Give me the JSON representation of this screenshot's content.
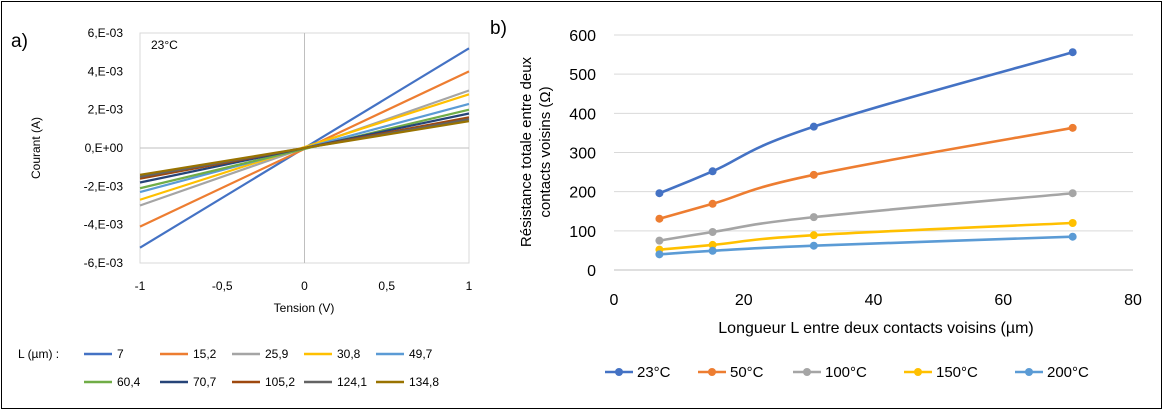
{
  "panel_labels": {
    "a": "a)",
    "b": "b)"
  },
  "chart_data": [
    {
      "type": "line",
      "annotation": "23°C",
      "xlabel": "Tension (V)",
      "ylabel": "Courant (A)",
      "xlim": [
        -1,
        1
      ],
      "ylim": [
        -0.006,
        0.006
      ],
      "xticks": [
        -1,
        -0.5,
        0,
        0.5,
        1
      ],
      "xtick_labels": [
        "-1",
        "-0,5",
        "0",
        "0,5",
        "1"
      ],
      "yticks": [
        -0.006,
        -0.004,
        -0.002,
        0,
        0.002,
        0.004,
        0.006
      ],
      "ytick_labels": [
        "-6,E-03",
        "-4,E-03",
        "-2,E-03",
        "0,E+00",
        "2,E-03",
        "4,E-03",
        "6,E-03"
      ],
      "legend_title": "L (µm) :",
      "legend_placement": "bottom",
      "series": [
        {
          "name": "7",
          "color": "#4472C4",
          "x": [
            -1,
            1
          ],
          "y": [
            -0.0052,
            0.0052
          ]
        },
        {
          "name": "15,2",
          "color": "#ED7D31",
          "x": [
            -1,
            1
          ],
          "y": [
            -0.0041,
            0.004
          ]
        },
        {
          "name": "25,9",
          "color": "#A5A5A5",
          "x": [
            -1,
            1
          ],
          "y": [
            -0.003,
            0.003
          ]
        },
        {
          "name": "30,8",
          "color": "#FFC000",
          "x": [
            -1,
            1
          ],
          "y": [
            -0.0027,
            0.0028
          ]
        },
        {
          "name": "49,7",
          "color": "#5B9BD5",
          "x": [
            -1,
            1
          ],
          "y": [
            -0.0023,
            0.0023
          ]
        },
        {
          "name": "60,4",
          "color": "#70AD47",
          "x": [
            -1,
            1
          ],
          "y": [
            -0.0021,
            0.002
          ]
        },
        {
          "name": "70,7",
          "color": "#264478",
          "x": [
            -1,
            1
          ],
          "y": [
            -0.0018,
            0.0018
          ]
        },
        {
          "name": "105,2",
          "color": "#9E480E",
          "x": [
            -1,
            1
          ],
          "y": [
            -0.0016,
            0.0016
          ]
        },
        {
          "name": "124,1",
          "color": "#636363",
          "x": [
            -1,
            1
          ],
          "y": [
            -0.0015,
            0.0015
          ]
        },
        {
          "name": "134,8",
          "color": "#997300",
          "x": [
            -1,
            1
          ],
          "y": [
            -0.0014,
            0.0014
          ]
        }
      ]
    },
    {
      "type": "line",
      "xlabel": "Longueur L entre deux contacts voisins (µm)",
      "ylabel_lines": [
        "Résistance totale entre deux",
        "contacts voisins (Ω)"
      ],
      "xlim": [
        0,
        80
      ],
      "ylim": [
        0,
        600
      ],
      "xticks": [
        0,
        20,
        40,
        60,
        80
      ],
      "yticks": [
        0,
        100,
        200,
        300,
        400,
        500,
        600
      ],
      "grid": "horizontal",
      "legend_placement": "bottom",
      "x": [
        7,
        15.2,
        30.8,
        70.7
      ],
      "series": [
        {
          "name": "23°C",
          "color": "#4472C4",
          "values": [
            196,
            252,
            366,
            556
          ]
        },
        {
          "name": "50°C",
          "color": "#ED7D31",
          "values": [
            131,
            169,
            243,
            363
          ]
        },
        {
          "name": "100°C",
          "color": "#A5A5A5",
          "values": [
            75,
            97,
            135,
            196
          ]
        },
        {
          "name": "150°C",
          "color": "#FFC000",
          "values": [
            52,
            64,
            89,
            120
          ]
        },
        {
          "name": "200°C",
          "color": "#5B9BD5",
          "values": [
            40,
            49,
            62,
            85
          ]
        }
      ]
    }
  ]
}
